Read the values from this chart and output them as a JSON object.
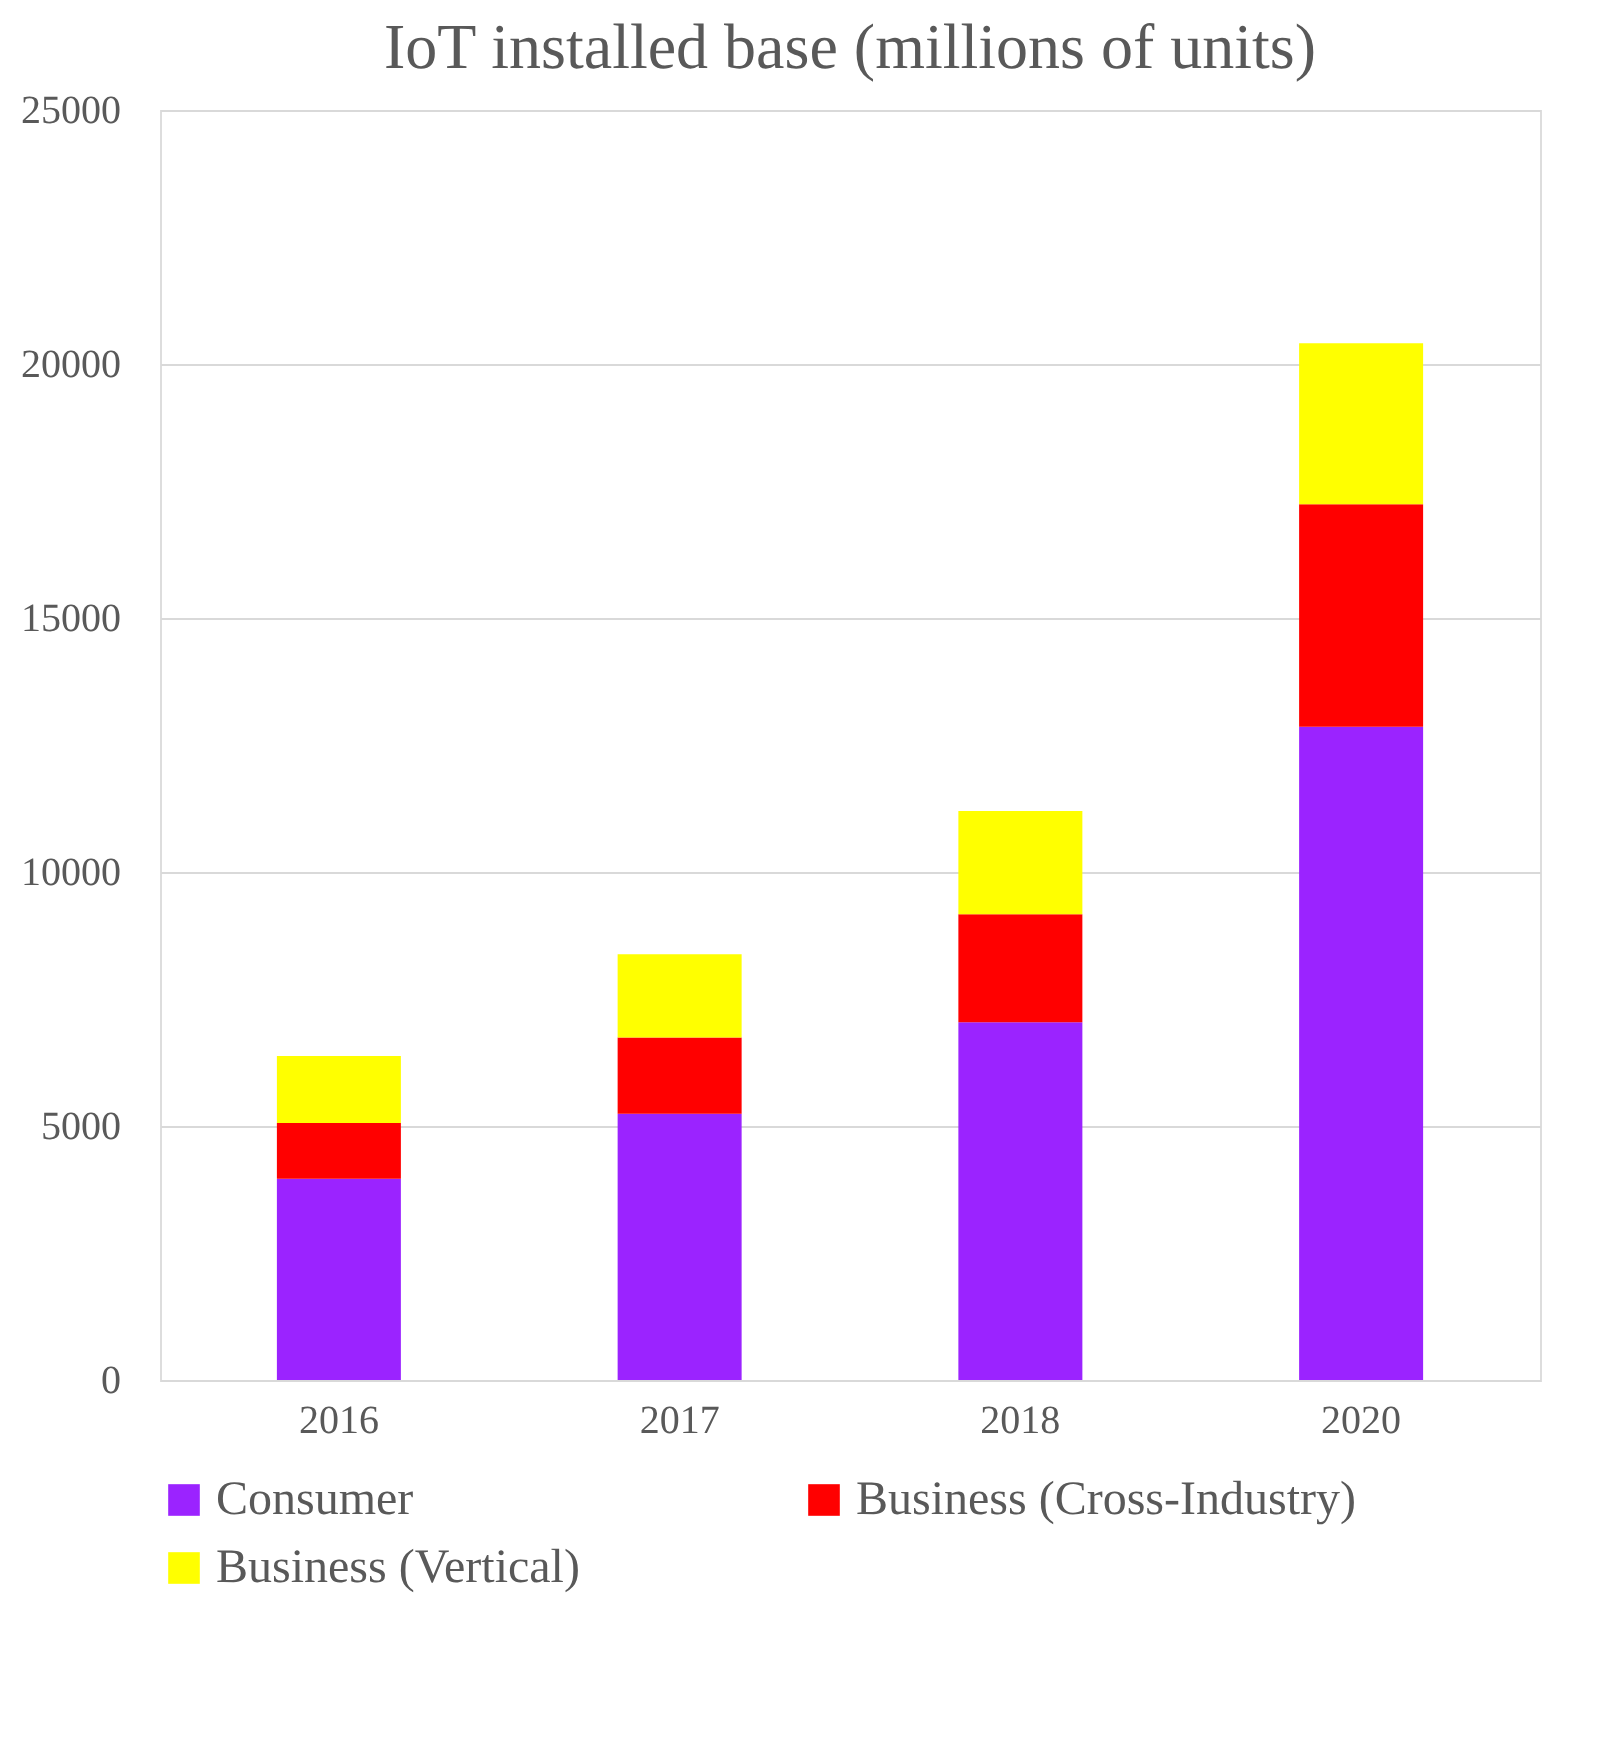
{
  "chart_data": {
    "type": "bar",
    "title": "IoT installed base (millions of units)",
    "stacked": true,
    "categories": [
      "2016",
      "2017",
      "2018",
      "2020"
    ],
    "series": [
      {
        "name": "Consumer",
        "color": "#9b23ff",
        "values": [
          3960,
          5240,
          7040,
          12860
        ]
      },
      {
        "name": "Business (Cross-Industry)",
        "color": "#ff0000",
        "values": [
          1100,
          1500,
          2130,
          4380
        ]
      },
      {
        "name": "Business (Vertical)",
        "color": "#ffff00",
        "values": [
          1320,
          1640,
          2030,
          3170
        ]
      }
    ],
    "ylim": [
      0,
      25000
    ],
    "yticks": [
      0,
      5000,
      10000,
      15000,
      20000,
      25000
    ],
    "grid": "y",
    "legend": "bottom"
  }
}
